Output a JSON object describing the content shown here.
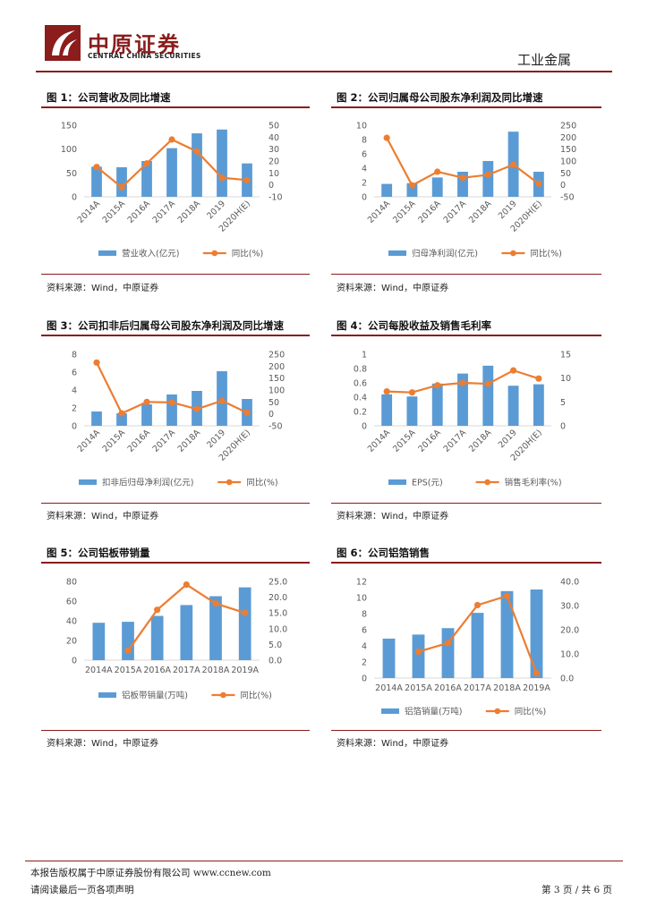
{
  "header": {
    "logo_cn": "中原证券",
    "logo_en": "CENTRAL CHINA SECURITIES",
    "section": "工业金属"
  },
  "colors": {
    "brand": "#8b1d1d",
    "bar": "#5b9bd5",
    "line": "#ed7d31"
  },
  "figures": [
    {
      "title": "图 1：公司营收及同比增速",
      "source": "资料来源：Wind，中原证券"
    },
    {
      "title": "图 2：公司归属母公司股东净利润及同比增速",
      "source": "资料来源：Wind，中原证券"
    },
    {
      "title": "图 3：公司扣非后归属母公司股东净利润及同比增速",
      "source": "资料来源：Wind，中原证券"
    },
    {
      "title": "图 4：公司每股收益及销售毛利率",
      "source": "资料来源：Wind，中原证券"
    },
    {
      "title": "图 5：公司铝板带销量",
      "source": "资料来源：Wind，中原证券"
    },
    {
      "title": "图 6：公司铝箔销售",
      "source": "资料来源：Wind，中原证券"
    }
  ],
  "chart_data": [
    {
      "type": "bar+line",
      "title": "图 1：公司营收及同比增速",
      "categories": [
        "2014A",
        "2015A",
        "2016A",
        "2017A",
        "2018A",
        "2019",
        "2020H(E)"
      ],
      "series": [
        {
          "name": "营业收入(亿元)",
          "type": "bar",
          "axis": "left",
          "values": [
            63,
            62,
            75,
            102,
            133,
            141,
            70
          ]
        },
        {
          "name": "同比(%)",
          "type": "line",
          "axis": "right",
          "values": [
            15,
            -2,
            18,
            38,
            28,
            6,
            4
          ]
        }
      ],
      "left_ticks": [
        0,
        50,
        100,
        150
      ],
      "right_ticks": [
        -10,
        0,
        10,
        20,
        30,
        40,
        50
      ],
      "ylim_left": [
        0,
        150
      ],
      "ylim_right": [
        -10,
        50
      ],
      "rotate_x_labels": true
    },
    {
      "type": "bar+line",
      "title": "图 2：公司归属母公司股东净利润及同比增速",
      "categories": [
        "2014A",
        "2015A",
        "2016A",
        "2017A",
        "2018A",
        "2019",
        "2020H(E)"
      ],
      "series": [
        {
          "name": "归母净利润(亿元)",
          "type": "bar",
          "axis": "left",
          "values": [
            1.8,
            1.9,
            2.7,
            3.5,
            5.0,
            9.1,
            3.5
          ]
        },
        {
          "name": "同比(%)",
          "type": "line",
          "axis": "right",
          "values": [
            197,
            -2,
            55,
            30,
            42,
            85,
            5
          ]
        }
      ],
      "left_ticks": [
        0,
        2,
        4,
        6,
        8,
        10
      ],
      "right_ticks": [
        -50,
        0,
        50,
        100,
        150,
        200,
        250
      ],
      "ylim_left": [
        0,
        10
      ],
      "ylim_right": [
        -50,
        250
      ],
      "rotate_x_labels": true
    },
    {
      "type": "bar+line",
      "title": "图 3：公司扣非后归属母公司股东净利润及同比增速",
      "categories": [
        "2014A",
        "2015A",
        "2016A",
        "2017A",
        "2018A",
        "2019",
        "2020H(E)"
      ],
      "series": [
        {
          "name": "扣非后归母净利润(亿元)",
          "type": "bar",
          "axis": "left",
          "values": [
            1.6,
            1.4,
            2.4,
            3.5,
            3.9,
            6.1,
            3.0
          ]
        },
        {
          "name": "同比(%)",
          "type": "line",
          "axis": "right",
          "values": [
            215,
            2,
            50,
            48,
            20,
            55,
            5
          ]
        }
      ],
      "left_ticks": [
        0,
        2,
        4,
        6,
        8
      ],
      "right_ticks": [
        -50,
        0,
        50,
        100,
        150,
        200,
        250
      ],
      "ylim_left": [
        0,
        8
      ],
      "ylim_right": [
        -50,
        250
      ],
      "rotate_x_labels": true
    },
    {
      "type": "bar+line",
      "title": "图 4：公司每股收益及销售毛利率",
      "categories": [
        "2014A",
        "2015A",
        "2016A",
        "2017A",
        "2018A",
        "2019",
        "2020H(E)"
      ],
      "series": [
        {
          "name": "EPS(元)",
          "type": "bar",
          "axis": "left",
          "values": [
            0.44,
            0.41,
            0.59,
            0.73,
            0.84,
            0.56,
            0.58
          ]
        },
        {
          "name": "销售毛利率(%)",
          "type": "line",
          "axis": "right",
          "values": [
            7.2,
            7.0,
            8.5,
            9.0,
            8.8,
            11.6,
            9.9
          ]
        }
      ],
      "left_ticks": [
        0,
        0.2,
        0.4,
        0.6,
        0.8,
        1
      ],
      "right_ticks": [
        0,
        5,
        10,
        15
      ],
      "ylim_left": [
        0,
        1
      ],
      "ylim_right": [
        0,
        15
      ],
      "rotate_x_labels": true
    },
    {
      "type": "bar+line",
      "title": "图 5：公司铝板带销量",
      "categories": [
        "2014A",
        "2015A",
        "2016A",
        "2017A",
        "2018A",
        "2019A"
      ],
      "series": [
        {
          "name": "铝板带销量(万吨)",
          "type": "bar",
          "axis": "left",
          "values": [
            38,
            39,
            45,
            56,
            65,
            74
          ]
        },
        {
          "name": "同比(%)",
          "type": "line",
          "axis": "right",
          "values": [
            null,
            3,
            16,
            24,
            18,
            15
          ]
        }
      ],
      "left_ticks": [
        0,
        20,
        40,
        60,
        80
      ],
      "right_ticks": [
        "0.0",
        "5.0",
        "10.0",
        "15.0",
        "20.0",
        "25.0"
      ],
      "ylim_left": [
        0,
        80
      ],
      "ylim_right": [
        0,
        25
      ],
      "rotate_x_labels": false
    },
    {
      "type": "bar+line",
      "title": "图 6：公司铝箔销售",
      "categories": [
        "2014A",
        "2015A",
        "2016A",
        "2017A",
        "2018A",
        "2019A"
      ],
      "series": [
        {
          "name": "铝箔销量(万吨)",
          "type": "bar",
          "axis": "left",
          "values": [
            4.9,
            5.4,
            6.2,
            8.1,
            10.8,
            11.0
          ]
        },
        {
          "name": "同比(%)",
          "type": "line",
          "axis": "right",
          "values": [
            null,
            10.9,
            14.5,
            30.2,
            34.0,
            2.0
          ]
        }
      ],
      "left_ticks": [
        0,
        2,
        4,
        6,
        8,
        10,
        12
      ],
      "right_ticks": [
        "0.0",
        "10.0",
        "20.0",
        "30.0",
        "40.0"
      ],
      "ylim_left": [
        0,
        12
      ],
      "ylim_right": [
        0,
        40
      ],
      "rotate_x_labels": false
    }
  ],
  "footer": {
    "copyright": "本报告版权属于中原证券股份有限公司    www.ccnew.com",
    "disclaimer": "请阅读最后一页各项声明",
    "page": "第 3 页 / 共 6 页"
  }
}
